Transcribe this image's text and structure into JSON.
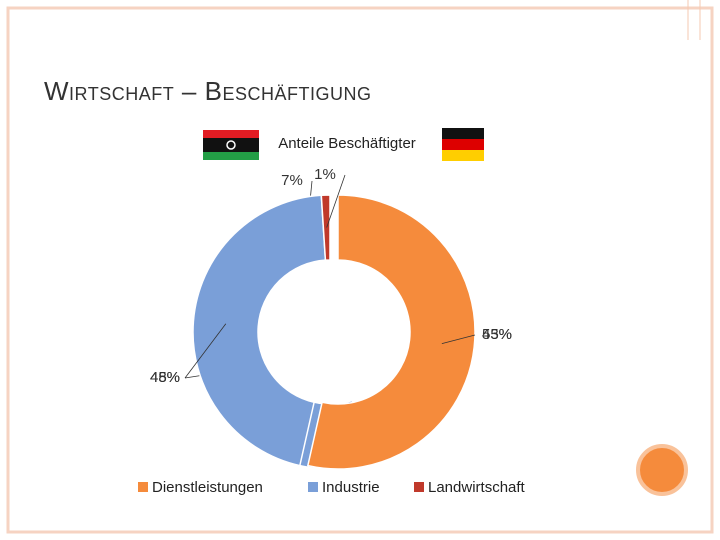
{
  "slide_title": "Wirtschaft – Beschäftigung",
  "chart_data": {
    "type": "donut",
    "title": "Anteile Beschäftigter",
    "categories": [
      "Dienstleistungen",
      "Industrie",
      "Landwirtschaft"
    ],
    "colors": [
      "#f58b3c",
      "#7a9fd8",
      "#c0392b"
    ],
    "series": [
      {
        "values": [
          45,
          48,
          7
        ]
      },
      {
        "values": [
          53,
          45,
          1
        ]
      }
    ],
    "legend": "bottom"
  }
}
